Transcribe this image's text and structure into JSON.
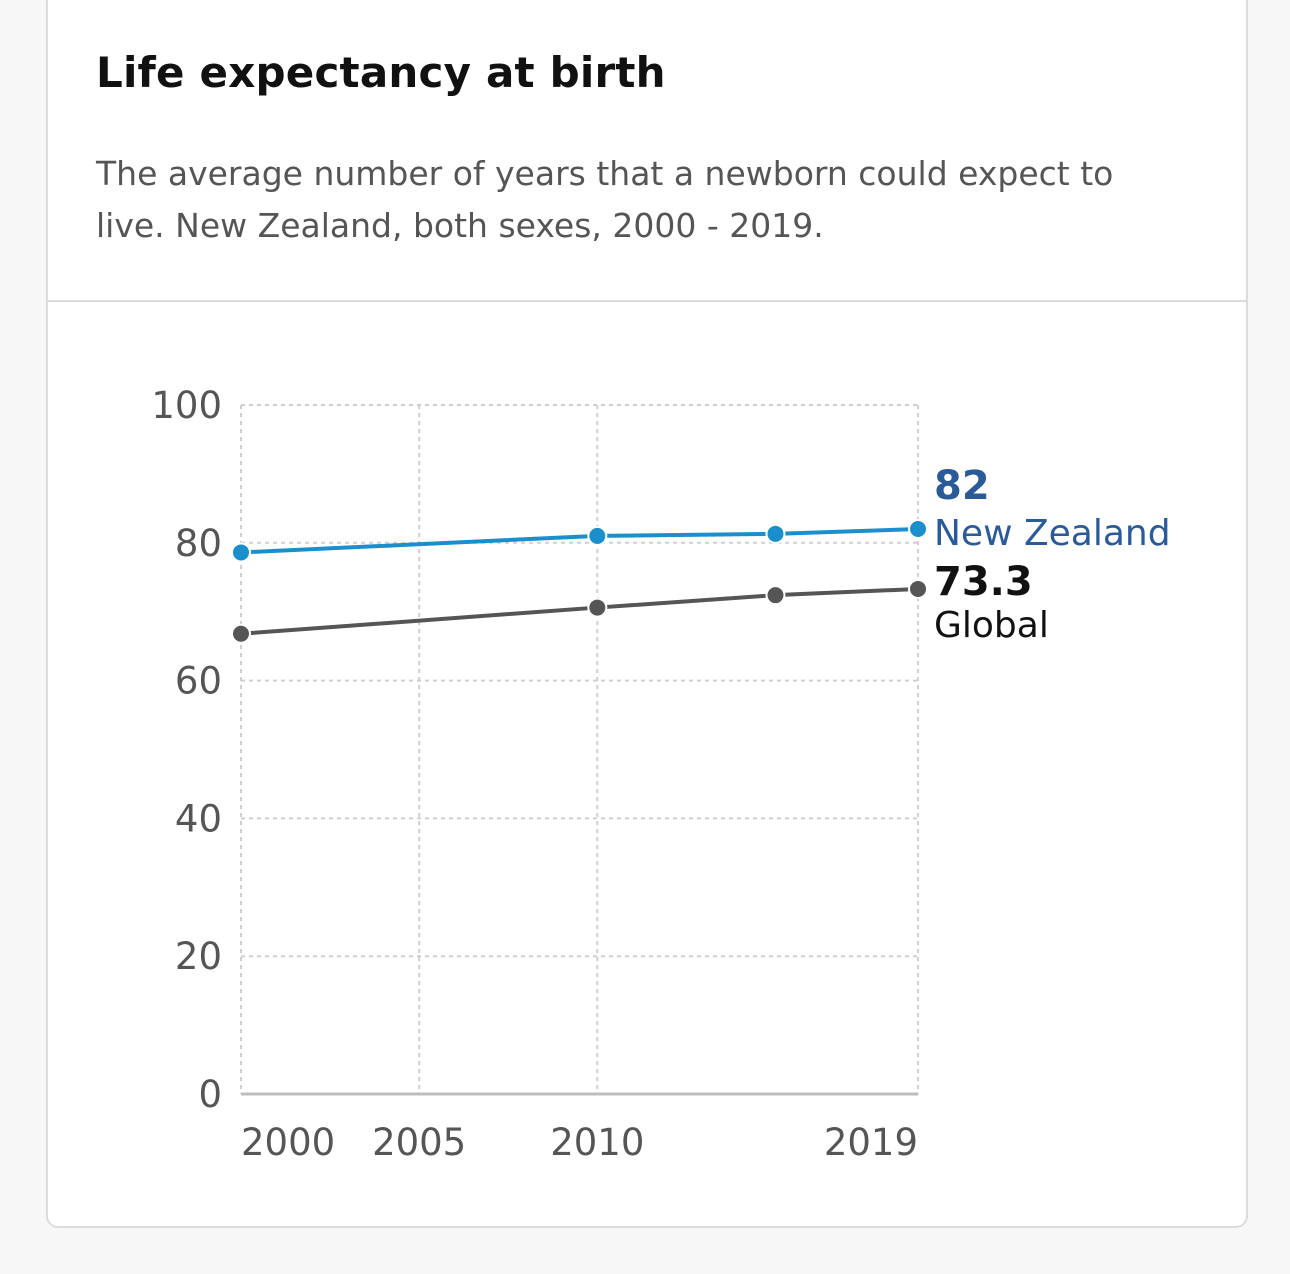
{
  "header": {
    "title": "Life expectancy at birth",
    "subtitle": "The average number of years that a newborn could expect to live. New Zealand, both sexes, 2000 - 2019."
  },
  "colors": {
    "new_zealand_line": "#1a8fcb",
    "new_zealand_label": "#2a5a97",
    "global_line": "#555555",
    "global_label": "#111111"
  },
  "chart_data": {
    "type": "line",
    "xlim": [
      2000,
      2019
    ],
    "ylim": [
      0,
      100
    ],
    "x_ticks": [
      2000,
      2005,
      2010,
      2019
    ],
    "x_ticklabels": [
      "2000",
      "2005",
      "2010",
      "2019"
    ],
    "y_ticks": [
      0,
      20,
      40,
      60,
      80,
      100
    ],
    "y_ticklabels": [
      "0",
      "20",
      "40",
      "60",
      "80",
      "100"
    ],
    "grid": true,
    "series": [
      {
        "name": "New Zealand",
        "end_label": "82",
        "x": [
          2000,
          2010,
          2015,
          2019
        ],
        "y": [
          78.6,
          81.0,
          81.3,
          82.0
        ]
      },
      {
        "name": "Global",
        "end_label": "73.3",
        "x": [
          2000,
          2010,
          2015,
          2019
        ],
        "y": [
          66.8,
          70.6,
          72.4,
          73.3
        ]
      }
    ]
  }
}
